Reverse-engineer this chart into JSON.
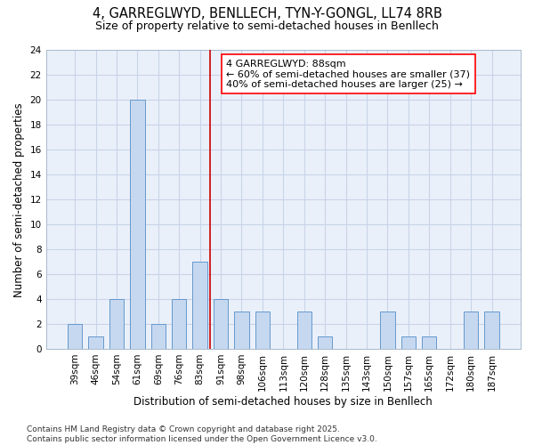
{
  "title_line1": "4, GARREGLWYD, BENLLECH, TYN-Y-GONGL, LL74 8RB",
  "title_line2": "Size of property relative to semi-detached houses in Benllech",
  "xlabel": "Distribution of semi-detached houses by size in Benllech",
  "ylabel": "Number of semi-detached properties",
  "categories": [
    "39sqm",
    "46sqm",
    "54sqm",
    "61sqm",
    "69sqm",
    "76sqm",
    "83sqm",
    "91sqm",
    "98sqm",
    "106sqm",
    "113sqm",
    "120sqm",
    "128sqm",
    "135sqm",
    "143sqm",
    "150sqm",
    "157sqm",
    "165sqm",
    "172sqm",
    "180sqm",
    "187sqm"
  ],
  "values": [
    2,
    1,
    4,
    20,
    2,
    4,
    7,
    4,
    3,
    3,
    0,
    3,
    1,
    0,
    0,
    3,
    1,
    1,
    0,
    3,
    3
  ],
  "bar_color": "#c5d8f0",
  "bar_edge_color": "#6699cc",
  "vline_color": "#cc0000",
  "annotation_title": "4 GARREGLWYD: 88sqm",
  "annotation_line1": "← 60% of semi-detached houses are smaller (37)",
  "annotation_line2": "40% of semi-detached houses are larger (25) →",
  "ylim": [
    0,
    24
  ],
  "yticks": [
    0,
    2,
    4,
    6,
    8,
    10,
    12,
    14,
    16,
    18,
    20,
    22,
    24
  ],
  "grid_color": "#c8d4e8",
  "bg_color": "#eaf0fa",
  "footer": "Contains HM Land Registry data © Crown copyright and database right 2025.\nContains public sector information licensed under the Open Government Licence v3.0.",
  "title_fontsize": 10.5,
  "subtitle_fontsize": 9,
  "axis_label_fontsize": 8.5,
  "tick_fontsize": 7.5,
  "annotation_fontsize": 8,
  "footer_fontsize": 6.5
}
